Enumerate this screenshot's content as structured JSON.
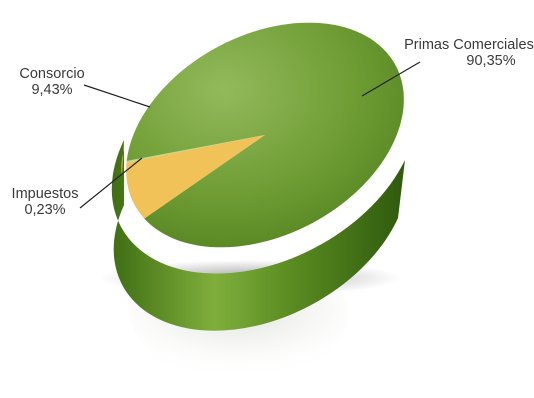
{
  "chart_data": {
    "type": "pie",
    "style": "3d-tilted-with-reflection",
    "slices": [
      {
        "name": "Primas Comerciales",
        "value": 90.35,
        "label": "90,35%",
        "color": "#7aa83a"
      },
      {
        "name": "Consorcio",
        "value": 9.43,
        "label": "9,43%",
        "color": "#f0c257"
      },
      {
        "name": "Impuestos",
        "value": 0.23,
        "label": "0,23%",
        "color": "#b8d88e"
      }
    ]
  }
}
